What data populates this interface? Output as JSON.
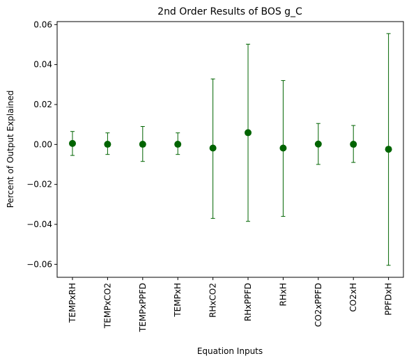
{
  "chart_data": {
    "type": "scatter",
    "title": "2nd Order Results of BOS g_C",
    "xlabel": "Equation Inputs",
    "ylabel": "Percent of Output Explained",
    "ylim": [
      -0.0665,
      0.0615
    ],
    "yticks": [
      "0.06",
      "0.04",
      "0.02",
      "0.00",
      "−0.02",
      "−0.04",
      "−0.06"
    ],
    "ytick_values": [
      0.06,
      0.04,
      0.02,
      0.0,
      -0.02,
      -0.04,
      -0.06
    ],
    "grid": false,
    "marker_color": "#006400",
    "categories": [
      "TEMPxRH",
      "TEMPxCO2",
      "TEMPxPPFD",
      "TEMPxH",
      "RHxCO2",
      "RHxPPFD",
      "RHxH",
      "CO2xPPFD",
      "CO2xH",
      "PPFDxH"
    ],
    "values": [
      0.0005,
      0.0001,
      0.0001,
      0.0001,
      -0.0018,
      0.0059,
      -0.0018,
      0.0002,
      0.0001,
      -0.0024
    ],
    "err_low": [
      -0.0055,
      -0.005,
      -0.0085,
      -0.005,
      -0.037,
      -0.0385,
      -0.036,
      -0.01,
      -0.009,
      -0.0605
    ],
    "err_high": [
      0.0065,
      0.0058,
      0.009,
      0.0058,
      0.0328,
      0.0502,
      0.032,
      0.0105,
      0.0095,
      0.0555
    ]
  }
}
